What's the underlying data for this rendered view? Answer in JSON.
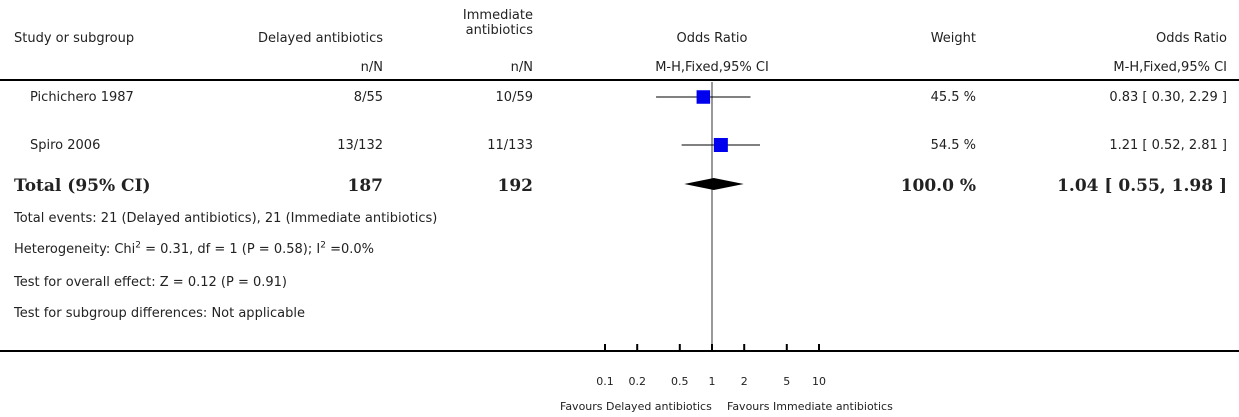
{
  "headers": {
    "study": "Study or subgroup",
    "delayed": "Delayed antibiotics",
    "immediate_l1": "Immediate",
    "immediate_l2": "antibiotics",
    "or_plot": "Odds Ratio",
    "weight": "Weight",
    "or_text": "Odds Ratio",
    "nN_delayed": "n/N",
    "nN_immediate": "n/N",
    "method_plot": "M-H,Fixed,95% CI",
    "method_text": "M-H,Fixed,95% CI"
  },
  "studies": [
    {
      "name": "Pichichero 1987",
      "delayed": "8/55",
      "immediate": "10/59",
      "weight": "45.5 %",
      "ci_text": "0.83 [ 0.30, 2.29 ]"
    },
    {
      "name": "Spiro 2006",
      "delayed": "13/132",
      "immediate": "11/133",
      "weight": "54.5 %",
      "ci_text": "1.21 [ 0.52, 2.81 ]"
    }
  ],
  "total": {
    "label": "Total (95% CI)",
    "delayed": "187",
    "immediate": "192",
    "weight": "100.0 %",
    "ci_text": "1.04 [ 0.55, 1.98 ]"
  },
  "notes": {
    "events": "Total events: 21 (Delayed antibiotics), 21 (Immediate antibiotics)",
    "het_a": "Heterogeneity: Chi",
    "het_sup1": "2",
    "het_b": " = 0.31, df = 1 (P = 0.58); I",
    "het_sup2": "2",
    "het_c": " =0.0%",
    "overall": "Test for overall effect: Z = 0.12 (P = 0.91)",
    "subgroup": "Test for subgroup differences: Not applicable"
  },
  "axis": {
    "favours_left": "Favours Delayed antibiotics",
    "favours_right": "Favours Immediate antibiotics"
  },
  "chart_data": {
    "type": "forest",
    "scale": "log",
    "xlim": [
      0.1,
      10
    ],
    "ticks": [
      0.1,
      0.2,
      0.5,
      1,
      2,
      5,
      10
    ],
    "tick_labels": [
      "0.1",
      "0.2",
      "0.5",
      "1",
      "2",
      "5",
      "10"
    ],
    "null_value": 1,
    "studies": [
      {
        "name": "Pichichero 1987",
        "or": 0.83,
        "lo": 0.3,
        "hi": 2.29,
        "weight": 45.5
      },
      {
        "name": "Spiro 2006",
        "or": 1.21,
        "lo": 0.52,
        "hi": 2.81,
        "weight": 54.5
      }
    ],
    "total": {
      "or": 1.04,
      "lo": 0.55,
      "hi": 1.98
    },
    "colors": {
      "box": "#0000ee",
      "diamond": "#000000",
      "line": "#000000"
    }
  }
}
